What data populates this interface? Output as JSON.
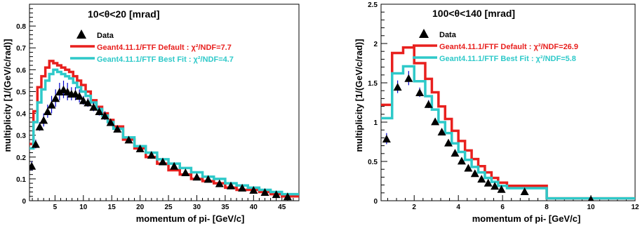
{
  "figure": {
    "colors": {
      "data": "#000000",
      "data_err": "#0000cc",
      "default": "#e8201e",
      "bestfit": "#2ec9c9"
    }
  },
  "chart_data": [
    {
      "type": "line",
      "title": "10<θ<20 [mrad]",
      "xlabel": "momentum of pi- [GeV/c]",
      "ylabel": "multiplicity [1/(GeV/c/rad)]",
      "xlim": [
        0.5,
        48
      ],
      "ylim": [
        0,
        0.9
      ],
      "xticks": [
        5,
        10,
        15,
        20,
        25,
        30,
        35,
        40,
        45
      ],
      "yticks": [
        0.1,
        0.2,
        0.3,
        0.4,
        0.5,
        0.6,
        0.7,
        0.8
      ],
      "grid": false,
      "legend_position": "top-right",
      "legend": [
        {
          "label": "Data",
          "chi2_text": ""
        },
        {
          "label": "Geant4.11.1/FTF Default : ",
          "chi2_text": "χ²/NDF=7.7"
        },
        {
          "label": "Geant4.11.1/FTF Best Fit : ",
          "chi2_text": "χ²/NDF=4.7"
        }
      ],
      "series": [
        {
          "name": "Data",
          "kind": "points",
          "x": [
            0.9,
            1.6,
            2.3,
            3.0,
            3.7,
            4.4,
            5.1,
            5.8,
            6.5,
            7.2,
            7.9,
            8.6,
            9.3,
            10.0,
            10.8,
            11.8,
            12.8,
            13.8,
            14.8,
            16.0,
            18.0,
            20.0,
            22.0,
            24.0,
            26.0,
            28.0,
            30.0,
            32.0,
            34.0,
            36.0,
            38.0,
            40.0,
            42.0,
            44.0,
            46.0
          ],
          "y": [
            0.16,
            0.26,
            0.34,
            0.37,
            0.41,
            0.44,
            0.47,
            0.5,
            0.51,
            0.5,
            0.49,
            0.49,
            0.48,
            0.46,
            0.45,
            0.43,
            0.41,
            0.39,
            0.36,
            0.33,
            0.28,
            0.24,
            0.21,
            0.18,
            0.16,
            0.13,
            0.11,
            0.1,
            0.08,
            0.07,
            0.06,
            0.05,
            0.04,
            0.03,
            0.02
          ],
          "err": [
            0.02,
            0.02,
            0.02,
            0.03,
            0.03,
            0.04,
            0.04,
            0.04,
            0.04,
            0.04,
            0.03,
            0.03,
            0.03,
            0.02,
            0.02,
            0.02,
            0.02,
            0.02,
            0.01,
            0.01,
            0.01,
            0.01,
            0.01,
            0.01,
            0.01,
            0.01,
            0.01,
            0.01,
            0.01,
            0.01,
            0.01,
            0.01,
            0.01,
            0.01,
            0.01
          ]
        },
        {
          "name": "Geant4.11.1/FTF Default",
          "kind": "step",
          "edges": [
            0.5,
            1.2,
            1.9,
            2.6,
            3.3,
            4.0,
            4.7,
            5.4,
            6.1,
            6.8,
            7.5,
            8.2,
            8.9,
            9.6,
            10.4,
            11.3,
            12.3,
            13.3,
            14.3,
            15.3,
            17.0,
            19.0,
            21.0,
            23.0,
            25.0,
            27.0,
            29.0,
            31.0,
            33.0,
            35.0,
            37.0,
            39.0,
            41.0,
            43.0,
            45.0,
            48.0
          ],
          "values": [
            0.26,
            0.41,
            0.52,
            0.57,
            0.61,
            0.64,
            0.63,
            0.62,
            0.61,
            0.6,
            0.59,
            0.57,
            0.55,
            0.53,
            0.5,
            0.46,
            0.43,
            0.4,
            0.37,
            0.34,
            0.28,
            0.24,
            0.2,
            0.17,
            0.14,
            0.12,
            0.1,
            0.09,
            0.08,
            0.06,
            0.05,
            0.05,
            0.04,
            0.03,
            0.02
          ]
        },
        {
          "name": "Geant4.11.1/FTF Best Fit",
          "kind": "step",
          "edges": [
            0.5,
            1.2,
            1.9,
            2.6,
            3.3,
            4.0,
            4.7,
            5.4,
            6.1,
            6.8,
            7.5,
            8.2,
            8.9,
            9.6,
            10.4,
            11.3,
            12.3,
            13.3,
            14.3,
            15.3,
            17.0,
            19.0,
            21.0,
            23.0,
            25.0,
            27.0,
            29.0,
            31.0,
            33.0,
            35.0,
            37.0,
            39.0,
            41.0,
            43.0,
            45.0,
            48.0
          ],
          "values": [
            0.24,
            0.36,
            0.45,
            0.51,
            0.55,
            0.58,
            0.6,
            0.59,
            0.58,
            0.57,
            0.56,
            0.54,
            0.52,
            0.5,
            0.48,
            0.45,
            0.42,
            0.39,
            0.36,
            0.33,
            0.29,
            0.25,
            0.22,
            0.19,
            0.17,
            0.15,
            0.13,
            0.11,
            0.1,
            0.08,
            0.07,
            0.06,
            0.05,
            0.04,
            0.03
          ]
        }
      ]
    },
    {
      "type": "line",
      "title": "100<θ<140 [mrad]",
      "xlabel": "momentum of pi- [GeV/c]",
      "ylabel": "multiplicity [1/(GeV/c/rad)]",
      "xlim": [
        0.5,
        12
      ],
      "ylim": [
        0,
        2.5
      ],
      "xticks": [
        2,
        4,
        6,
        8,
        10,
        12
      ],
      "yticks": [
        0.5,
        1,
        1.5,
        2,
        2.5
      ],
      "grid": false,
      "legend_position": "top-right",
      "legend": [
        {
          "label": "Data",
          "chi2_text": ""
        },
        {
          "label": "Geant4.11.1/FTF Default : ",
          "chi2_text": "χ²/NDF=26.9"
        },
        {
          "label": "Geant4.11.1/FTF Best Fit : ",
          "chi2_text": "χ²/NDF=5.8"
        }
      ],
      "series": [
        {
          "name": "Data",
          "kind": "points",
          "x": [
            0.75,
            1.25,
            1.75,
            2.25,
            2.65,
            2.95,
            3.25,
            3.55,
            3.85,
            4.15,
            4.45,
            4.75,
            5.05,
            5.35,
            5.65,
            5.95,
            7.0,
            10.0
          ],
          "y": [
            0.79,
            1.45,
            1.56,
            1.38,
            1.23,
            1.01,
            0.88,
            0.74,
            0.61,
            0.51,
            0.42,
            0.35,
            0.28,
            0.23,
            0.19,
            0.15,
            0.12,
            0.02
          ],
          "err": [
            0.07,
            0.08,
            0.09,
            0.06,
            0.05,
            0.04,
            0.04,
            0.03,
            0.03,
            0.03,
            0.02,
            0.02,
            0.02,
            0.02,
            0.02,
            0.02,
            0.01,
            0.01
          ]
        },
        {
          "name": "Geant4.11.1/FTF Default",
          "kind": "step",
          "edges": [
            0.5,
            1.0,
            1.5,
            2.0,
            2.5,
            2.8,
            3.1,
            3.4,
            3.7,
            4.0,
            4.3,
            4.6,
            4.9,
            5.2,
            5.5,
            5.8,
            6.2,
            8.0,
            12.0
          ],
          "values": [
            1.22,
            1.88,
            1.95,
            1.75,
            1.55,
            1.38,
            1.2,
            1.04,
            0.89,
            0.76,
            0.64,
            0.53,
            0.44,
            0.36,
            0.29,
            0.23,
            0.19,
            0.03
          ]
        },
        {
          "name": "Geant4.11.1/FTF Best Fit",
          "kind": "step",
          "edges": [
            0.5,
            1.0,
            1.5,
            2.0,
            2.5,
            2.8,
            3.1,
            3.4,
            3.7,
            4.0,
            4.3,
            4.6,
            4.9,
            5.2,
            5.5,
            5.8,
            6.2,
            8.0,
            12.0
          ],
          "values": [
            1.05,
            1.62,
            1.71,
            1.52,
            1.33,
            1.16,
            1.0,
            0.86,
            0.73,
            0.62,
            0.52,
            0.43,
            0.36,
            0.29,
            0.24,
            0.19,
            0.16,
            0.03
          ]
        }
      ]
    }
  ]
}
